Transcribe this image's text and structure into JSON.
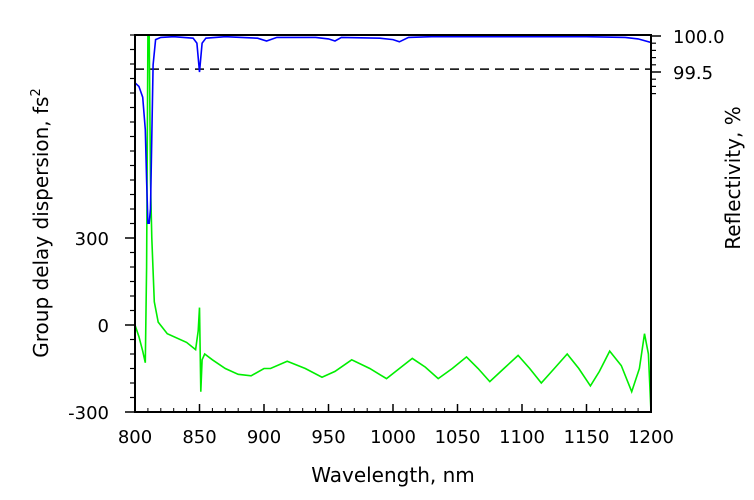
{
  "chart_data": {
    "type": "line",
    "xlabel": "Wavelength, nm",
    "ylabel_left": "Group delay dispersion, fs",
    "ylabel_left_sup": "2",
    "ylabel_right": "Reflectivity, %",
    "xlim": [
      800,
      1200
    ],
    "ylim_left": [
      -300,
      1000
    ],
    "ylim_right": [
      97.4,
      100.0
    ],
    "x_ticks": [
      800,
      850,
      900,
      950,
      1000,
      1050,
      1100,
      1150,
      1200
    ],
    "y_left_ticks": [
      -300,
      0,
      300
    ],
    "y_left_tick_labels": [
      "-300",
      "0",
      "300"
    ],
    "y_right_ticks": [
      99.5,
      100.0
    ],
    "y_right_tick_labels": [
      "99.5",
      "100.0"
    ],
    "grid": false,
    "reference_line": {
      "axis": "right",
      "value": 99.54,
      "style": "dashed",
      "color": "#000000"
    },
    "series": [
      {
        "axis": "right",
        "color": "#0000ff",
        "x": [
          800,
          803,
          806,
          808,
          809,
          810,
          811,
          812,
          813,
          814,
          816,
          820,
          830,
          845,
          848,
          850,
          852,
          855,
          870,
          895,
          902,
          910,
          940,
          950,
          955,
          960,
          990,
          1000,
          1005,
          1012,
          1030,
          1100,
          1150,
          1180,
          1190,
          1200
        ],
        "y": [
          99.35,
          99.3,
          99.15,
          98.7,
          98.0,
          97.4,
          97.4,
          97.6,
          98.6,
          99.6,
          99.95,
          99.98,
          99.99,
          99.97,
          99.9,
          99.5,
          99.9,
          99.97,
          99.99,
          99.97,
          99.93,
          99.98,
          99.98,
          99.96,
          99.93,
          99.98,
          99.97,
          99.95,
          99.92,
          99.98,
          99.99,
          99.99,
          99.99,
          99.98,
          99.96,
          99.91
        ]
      },
      {
        "axis": "left",
        "color": "#00ee00",
        "x": [
          800,
          803,
          806,
          808,
          809,
          810,
          811,
          812,
          813,
          815,
          818,
          825,
          840,
          847,
          849,
          850,
          851,
          852,
          854,
          860,
          870,
          880,
          890,
          900,
          905,
          918,
          932,
          945,
          955,
          968,
          982,
          995,
          1005,
          1015,
          1025,
          1035,
          1046,
          1057,
          1066,
          1075,
          1086,
          1097,
          1106,
          1115,
          1125,
          1135,
          1144,
          1153,
          1160,
          1168,
          1177,
          1185,
          1191,
          1195,
          1198,
          1200
        ],
        "y": [
          0,
          -40,
          -90,
          -130,
          200,
          1000,
          1000,
          500,
          300,
          80,
          10,
          -30,
          -60,
          -85,
          -20,
          60,
          -230,
          -120,
          -100,
          -120,
          -150,
          -170,
          -175,
          -150,
          -150,
          -125,
          -150,
          -180,
          -160,
          -120,
          -150,
          -185,
          -150,
          -115,
          -145,
          -185,
          -150,
          -110,
          -150,
          -195,
          -150,
          -105,
          -150,
          -200,
          -150,
          -100,
          -150,
          -210,
          -160,
          -90,
          -140,
          -230,
          -150,
          -30,
          -100,
          -300
        ]
      }
    ]
  }
}
